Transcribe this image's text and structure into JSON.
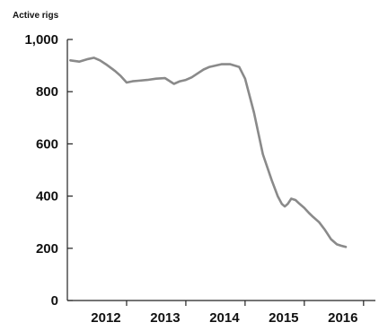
{
  "chart_data": {
    "type": "line",
    "title": "",
    "xlabel": "",
    "ylabel": "Active rigs",
    "xlim": [
      2011.0,
      2016.2
    ],
    "ylim": [
      0,
      1000
    ],
    "grid": false,
    "x_ticks": [
      2012,
      2013,
      2014,
      2015,
      2016
    ],
    "x_tick_labels": [
      "2012",
      "2013",
      "2014",
      "2015",
      "2016"
    ],
    "y_ticks": [
      0,
      200,
      400,
      600,
      800,
      1000
    ],
    "y_tick_labels": [
      "0",
      "200",
      "400",
      "600",
      "800",
      "1,000"
    ],
    "series": [
      {
        "name": "",
        "color": "#8a8a8a",
        "x": [
          2011.05,
          2011.2,
          2011.35,
          2011.45,
          2011.55,
          2011.65,
          2011.8,
          2011.9,
          2012.0,
          2012.1,
          2012.2,
          2012.35,
          2012.5,
          2012.65,
          2012.8,
          2012.9,
          2013.0,
          2013.1,
          2013.2,
          2013.3,
          2013.4,
          2013.5,
          2013.6,
          2013.75,
          2013.9,
          2014.0,
          2014.15,
          2014.3,
          2014.45,
          2014.55,
          2014.62,
          2014.67,
          2014.72,
          2014.78,
          2014.85,
          2014.92,
          2015.0,
          2015.08,
          2015.15,
          2015.25,
          2015.35,
          2015.45,
          2015.55,
          2015.62,
          2015.7
        ],
        "y": [
          920,
          915,
          925,
          930,
          920,
          905,
          880,
          860,
          835,
          840,
          842,
          845,
          850,
          852,
          830,
          840,
          845,
          855,
          870,
          885,
          895,
          900,
          905,
          905,
          895,
          850,
          720,
          560,
          460,
          400,
          370,
          360,
          370,
          390,
          385,
          370,
          355,
          335,
          320,
          300,
          270,
          235,
          215,
          210,
          205
        ]
      }
    ]
  }
}
